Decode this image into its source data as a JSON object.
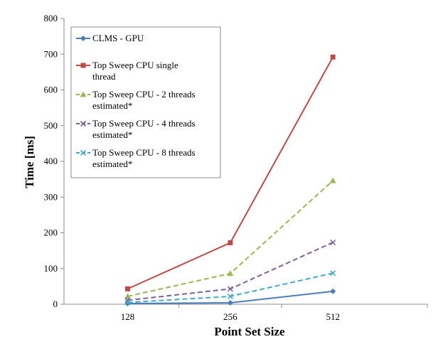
{
  "chart_data": {
    "type": "line",
    "xlabel": "Point Set Size",
    "ylabel": "Time [ms]",
    "categories": [
      "128",
      "256",
      "512"
    ],
    "ylim": [
      0,
      800
    ],
    "yticks": [
      0,
      100,
      200,
      300,
      400,
      500,
      600,
      700,
      800
    ],
    "grid": false,
    "legend_position": "top-left",
    "series": [
      {
        "name": "CLMS - GPU",
        "legend_lines": [
          "CLMS - GPU"
        ],
        "values": [
          2,
          4,
          36
        ],
        "color": "#4a7ebb",
        "dash": "solid",
        "marker": "diamond"
      },
      {
        "name": "Top Sweep CPU single thread",
        "legend_lines": [
          "Top Sweep CPU single",
          "thread"
        ],
        "values": [
          43,
          172,
          692
        ],
        "color": "#be4b48",
        "dash": "solid",
        "marker": "square"
      },
      {
        "name": "Top Sweep CPU - 2 threads estimated*",
        "legend_lines": [
          "Top Sweep CPU - 2 threads",
          "estimated*"
        ],
        "values": [
          22,
          86,
          346
        ],
        "color": "#98b954",
        "dash": "dashed",
        "marker": "triangle"
      },
      {
        "name": "Top Sweep CPU - 4 threads estimated*",
        "legend_lines": [
          "Top Sweep CPU - 4 threads",
          "estimated*"
        ],
        "values": [
          11,
          43,
          173
        ],
        "color": "#7d60a0",
        "dash": "dashed",
        "marker": "x"
      },
      {
        "name": "Top Sweep CPU - 8 threads estimated*",
        "legend_lines": [
          "Top Sweep CPU - 8 threads",
          "estimated*"
        ],
        "values": [
          5,
          22,
          87
        ],
        "color": "#46aac5",
        "dash": "dashed",
        "marker": "x"
      }
    ]
  }
}
